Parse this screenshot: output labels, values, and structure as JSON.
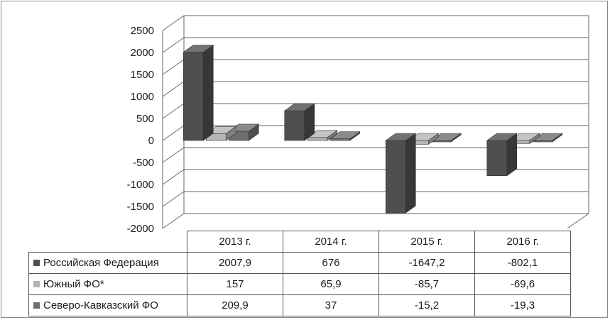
{
  "chart_data": {
    "type": "bar",
    "categories": [
      "2013 г.",
      "2014 г.",
      "2015 г.",
      "2016 г."
    ],
    "series": [
      {
        "name": "Российская Федерация",
        "values": [
          2007.9,
          676,
          -1647.2,
          -802.1
        ],
        "display": [
          "2007,9",
          "676",
          "-1647,2",
          "-802,1"
        ],
        "color": "#4f4f4f"
      },
      {
        "name": "Южный ФО*",
        "values": [
          157,
          65.9,
          -85.7,
          -69.6
        ],
        "display": [
          "157",
          "65,9",
          "-85,7",
          "-69,6"
        ],
        "color": "#b5b5b5"
      },
      {
        "name": "Северо-Кавказский ФО",
        "values": [
          209.9,
          37,
          -15.2,
          -19.3
        ],
        "display": [
          "209,9",
          "37",
          "-15,2",
          "-19,3"
        ],
        "color": "#6e6e6e"
      }
    ],
    "y_ticks": [
      "2500",
      "2000",
      "1500",
      "1000",
      "500",
      "0",
      "-500",
      "-1000",
      "-1500",
      "-2000"
    ],
    "ylim": [
      -2000,
      2500
    ],
    "grid": true,
    "legend": "data-table",
    "style": "3d-column"
  }
}
